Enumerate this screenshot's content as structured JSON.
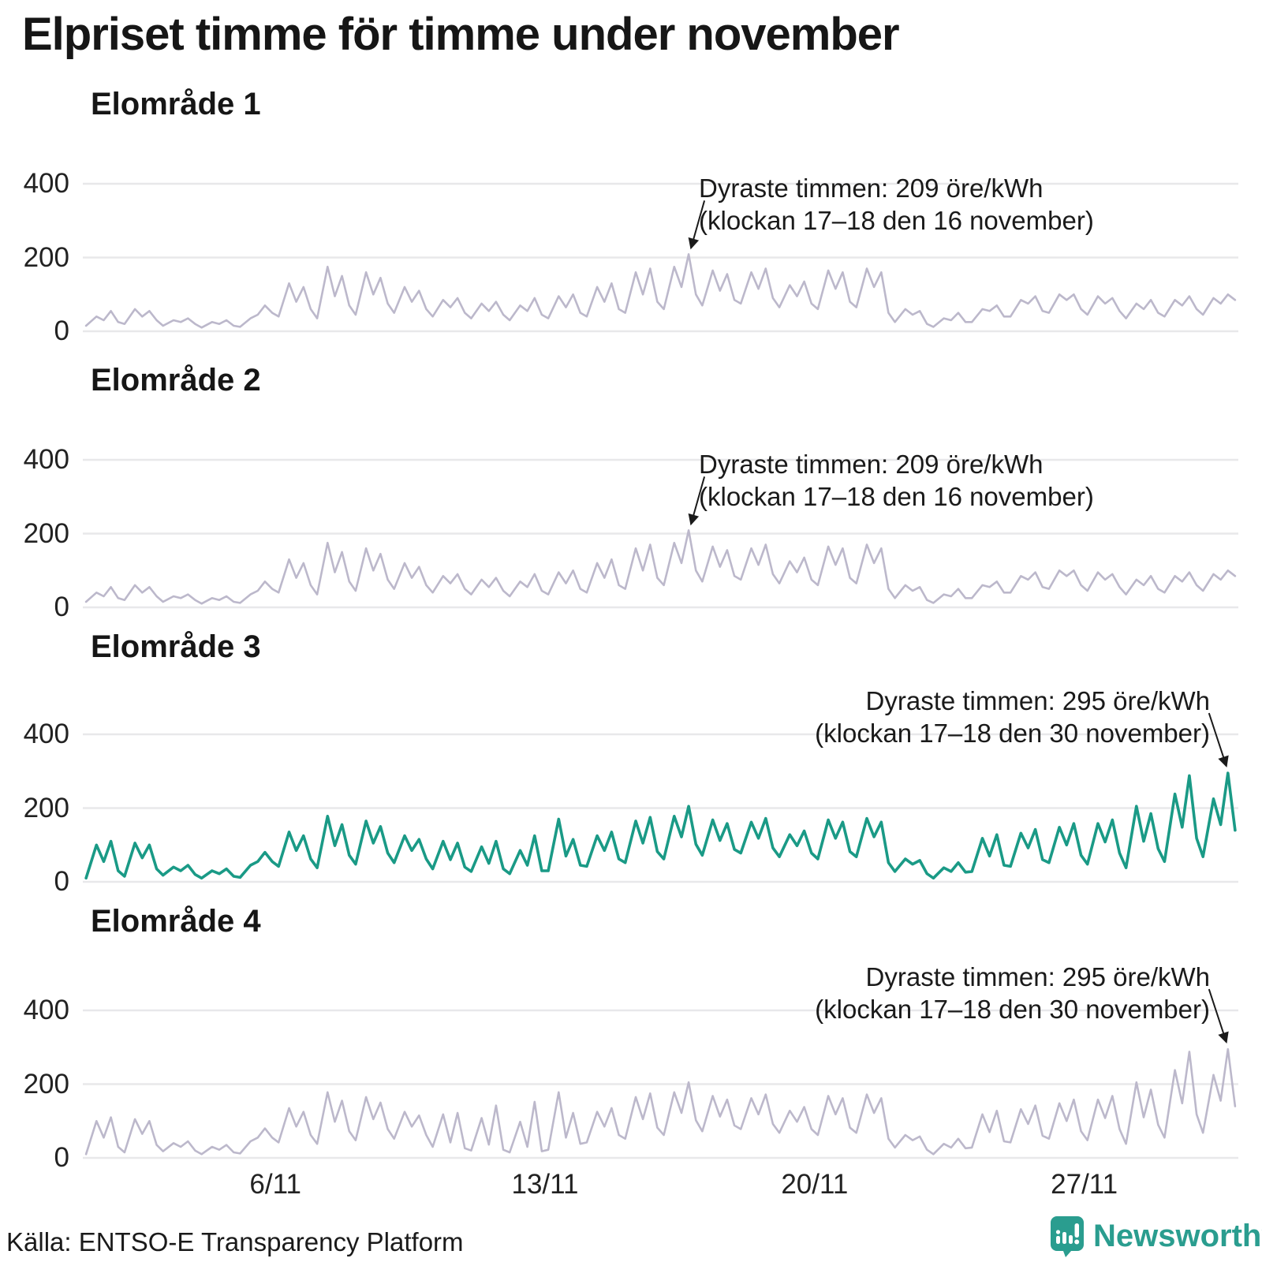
{
  "title": "Elpriset timme för timme under november",
  "source": "Källa: ENTSO-E Transparency Platform",
  "logo": {
    "name": "Newsworthy",
    "color": "#2a9d8f"
  },
  "chart_data": {
    "type": "line",
    "unit": "öre/kWh",
    "month": "november",
    "days": 30,
    "sample_hours": [
      2,
      8.5,
      13,
      17.5,
      22
    ],
    "yticks": [
      0,
      200,
      400
    ],
    "ylim": [
      0,
      440
    ],
    "grid": true,
    "xticks": [
      {
        "label": "6/11",
        "day": 6
      },
      {
        "label": "13/11",
        "day": 13
      },
      {
        "label": "20/11",
        "day": 20
      },
      {
        "label": "27/11",
        "day": 27
      }
    ],
    "colors": {
      "muted_line": "#bcb8cb",
      "highlight_line": "#1a9a86",
      "gridline": "#e8e8ea"
    },
    "panels": [
      {
        "title": "Elområde 1",
        "series": "zone1_2",
        "color": "#bcb8cb",
        "highlight": false,
        "annotation": {
          "line1": "Dyraste timmen: 209 öre/kWh",
          "line2": "(klockan 17–18 den 16 november)",
          "value": 209,
          "day": 16,
          "hour": 17.5,
          "align": "left"
        }
      },
      {
        "title": "Elområde 2",
        "series": "zone1_2",
        "color": "#bcb8cb",
        "highlight": false,
        "annotation": {
          "line1": "Dyraste timmen: 209 öre/kWh",
          "line2": "(klockan 17–18 den 16 november)",
          "value": 209,
          "day": 16,
          "hour": 17.5,
          "align": "left"
        }
      },
      {
        "title": "Elområde 3",
        "series": "zone3",
        "color": "#1a9a86",
        "highlight": true,
        "annotation": {
          "line1": "Dyraste timmen: 295 öre/kWh",
          "line2": "(klockan 17–18 den 30 november)",
          "value": 295,
          "day": 30,
          "hour": 17.5,
          "align": "right"
        }
      },
      {
        "title": "Elområde 4",
        "series": "zone4",
        "color": "#bcb8cb",
        "highlight": false,
        "annotation": {
          "line1": "Dyraste timmen: 295 öre/kWh",
          "line2": "(klockan 17–18 den 30 november)",
          "value": 295,
          "day": 30,
          "hour": 17.5,
          "align": "right"
        }
      }
    ],
    "series": {
      "zone1_2": [
        [
          15,
          40,
          30,
          55,
          25
        ],
        [
          20,
          60,
          40,
          55,
          30
        ],
        [
          15,
          30,
          25,
          35,
          20
        ],
        [
          10,
          25,
          20,
          30,
          15
        ],
        [
          12,
          35,
          45,
          70,
          50
        ],
        [
          40,
          130,
          80,
          120,
          60
        ],
        [
          35,
          175,
          95,
          150,
          70
        ],
        [
          45,
          160,
          100,
          145,
          75
        ],
        [
          50,
          120,
          80,
          110,
          60
        ],
        [
          40,
          85,
          65,
          90,
          50
        ],
        [
          35,
          75,
          55,
          80,
          45
        ],
        [
          30,
          70,
          55,
          90,
          45
        ],
        [
          35,
          95,
          65,
          100,
          50
        ],
        [
          40,
          120,
          80,
          130,
          60
        ],
        [
          50,
          160,
          100,
          170,
          80
        ],
        [
          60,
          175,
          120,
          209,
          100
        ],
        [
          70,
          165,
          110,
          155,
          85
        ],
        [
          75,
          160,
          115,
          170,
          90
        ],
        [
          65,
          125,
          95,
          135,
          75
        ],
        [
          60,
          165,
          115,
          160,
          80
        ],
        [
          65,
          170,
          120,
          160,
          50
        ],
        [
          25,
          60,
          45,
          55,
          20
        ],
        [
          12,
          35,
          30,
          50,
          25
        ],
        [
          25,
          60,
          55,
          70,
          40
        ],
        [
          40,
          85,
          75,
          95,
          55
        ],
        [
          50,
          100,
          85,
          100,
          60
        ],
        [
          45,
          95,
          75,
          90,
          55
        ],
        [
          35,
          75,
          60,
          85,
          50
        ],
        [
          40,
          85,
          70,
          95,
          60
        ],
        [
          45,
          90,
          75,
          100,
          85
        ]
      ],
      "zone3": [
        [
          10,
          100,
          55,
          110,
          30
        ],
        [
          15,
          105,
          65,
          100,
          35
        ],
        [
          18,
          40,
          30,
          45,
          20
        ],
        [
          10,
          30,
          22,
          35,
          15
        ],
        [
          12,
          45,
          55,
          80,
          55
        ],
        [
          42,
          135,
          85,
          125,
          62
        ],
        [
          38,
          178,
          98,
          155,
          72
        ],
        [
          48,
          165,
          105,
          150,
          78
        ],
        [
          52,
          125,
          85,
          115,
          62
        ],
        [
          35,
          110,
          60,
          105,
          40
        ],
        [
          28,
          95,
          50,
          110,
          35
        ],
        [
          22,
          85,
          45,
          125,
          30
        ],
        [
          30,
          170,
          70,
          115,
          45
        ],
        [
          42,
          125,
          85,
          135,
          62
        ],
        [
          52,
          165,
          105,
          175,
          82
        ],
        [
          62,
          178,
          122,
          205,
          102
        ],
        [
          72,
          168,
          112,
          158,
          88
        ],
        [
          78,
          162,
          118,
          172,
          92
        ],
        [
          68,
          128,
          98,
          138,
          78
        ],
        [
          62,
          168,
          118,
          162,
          82
        ],
        [
          68,
          172,
          122,
          162,
          52
        ],
        [
          28,
          62,
          48,
          58,
          22
        ],
        [
          10,
          38,
          28,
          52,
          26
        ],
        [
          28,
          118,
          70,
          128,
          45
        ],
        [
          42,
          132,
          92,
          142,
          60
        ],
        [
          52,
          148,
          100,
          158,
          72
        ],
        [
          48,
          158,
          108,
          168,
          78
        ],
        [
          38,
          205,
          110,
          185,
          90
        ],
        [
          55,
          238,
          148,
          288,
          118
        ],
        [
          68,
          225,
          155,
          295,
          140
        ]
      ],
      "zone4": [
        [
          10,
          100,
          55,
          110,
          30
        ],
        [
          15,
          105,
          65,
          100,
          35
        ],
        [
          18,
          40,
          30,
          45,
          20
        ],
        [
          10,
          30,
          22,
          35,
          15
        ],
        [
          12,
          45,
          55,
          80,
          55
        ],
        [
          42,
          135,
          85,
          125,
          62
        ],
        [
          38,
          178,
          98,
          155,
          72
        ],
        [
          48,
          165,
          105,
          150,
          78
        ],
        [
          52,
          125,
          85,
          115,
          62
        ],
        [
          30,
          118,
          42,
          122,
          26
        ],
        [
          20,
          108,
          36,
          142,
          22
        ],
        [
          15,
          98,
          30,
          152,
          18
        ],
        [
          22,
          178,
          55,
          122,
          38
        ],
        [
          42,
          125,
          85,
          135,
          62
        ],
        [
          52,
          165,
          105,
          175,
          82
        ],
        [
          62,
          178,
          122,
          205,
          102
        ],
        [
          72,
          168,
          112,
          158,
          88
        ],
        [
          78,
          162,
          118,
          172,
          92
        ],
        [
          68,
          128,
          98,
          138,
          78
        ],
        [
          62,
          168,
          118,
          162,
          82
        ],
        [
          68,
          172,
          122,
          162,
          52
        ],
        [
          28,
          62,
          48,
          58,
          22
        ],
        [
          10,
          38,
          28,
          52,
          26
        ],
        [
          28,
          118,
          70,
          128,
          45
        ],
        [
          42,
          132,
          92,
          142,
          60
        ],
        [
          52,
          148,
          100,
          158,
          72
        ],
        [
          48,
          158,
          108,
          168,
          78
        ],
        [
          38,
          205,
          110,
          185,
          90
        ],
        [
          55,
          238,
          148,
          288,
          118
        ],
        [
          68,
          225,
          155,
          295,
          140
        ]
      ]
    }
  }
}
